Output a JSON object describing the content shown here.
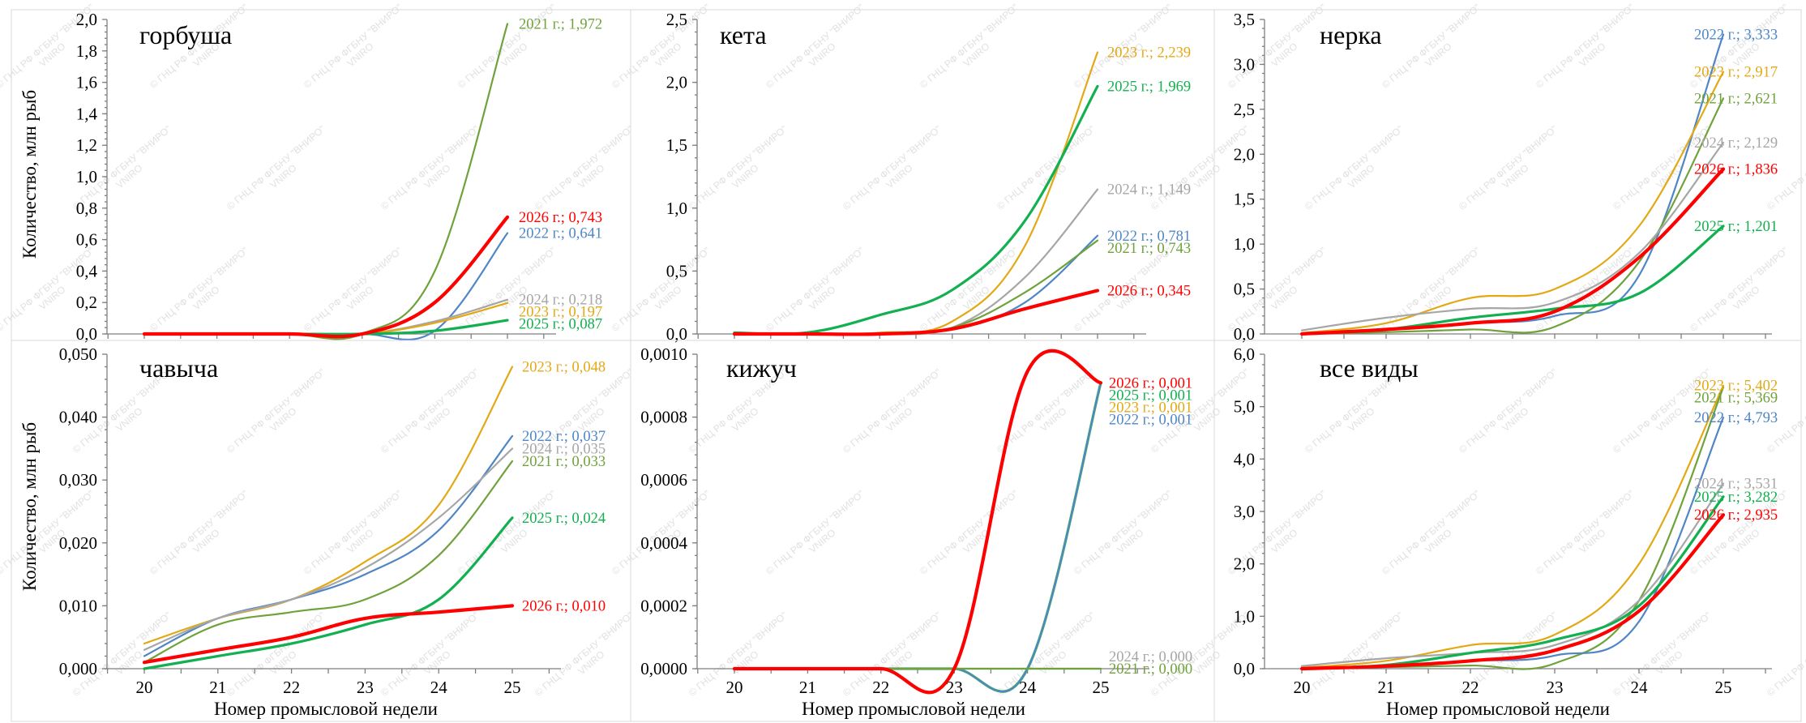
{
  "figure": {
    "x_axis_title": "Номер промысловой недели",
    "y_axis_title": "Количество, млн рыб",
    "watermark": [
      "© ГНЦ РФ ФГБНУ \"ВНИРО\"",
      "VNIRO"
    ]
  },
  "series_colors": {
    "2021": "#70a23c",
    "2022": "#4f86c6",
    "2023": "#e3a915",
    "2024": "#a6a6a6",
    "2025": "#12b050",
    "2026": "#ff0000"
  },
  "chart_data": [
    {
      "type": "line",
      "title": "горбуша",
      "x": [
        20,
        21,
        22,
        23,
        24,
        25
      ],
      "ylim": [
        0,
        2.0
      ],
      "y_ticks": [
        "0,0",
        "0,2",
        "0,4",
        "0,6",
        "0,8",
        "1,0",
        "1,2",
        "1,4",
        "1,6",
        "1,8",
        "2,0"
      ],
      "x_ticks": [],
      "series": [
        {
          "name": "2021 г.",
          "values": [
            0,
            0,
            0,
            0,
            0.4,
            1.972
          ],
          "end_label": "2021 г.; 1,972"
        },
        {
          "name": "2026 г.",
          "values": [
            0,
            0,
            0,
            0,
            0.2,
            0.743
          ],
          "end_label": "2026 г.; 0,743"
        },
        {
          "name": "2022 г.",
          "values": [
            0,
            0,
            0,
            0,
            0.02,
            0.641
          ],
          "end_label": "2022 г.; 0,641"
        },
        {
          "name": "2024 г.",
          "values": [
            0,
            0,
            0,
            0,
            0.08,
            0.218
          ],
          "end_label": "2024 г.; 0,218"
        },
        {
          "name": "2023 г.",
          "values": [
            0,
            0,
            0,
            0,
            0.07,
            0.197
          ],
          "end_label": "2023 г.; 0,197"
        },
        {
          "name": "2025 г.",
          "values": [
            0,
            0,
            0,
            0,
            0.02,
            0.087
          ],
          "end_label": "2025 г.; 0,087"
        }
      ]
    },
    {
      "type": "line",
      "title": "кета",
      "x": [
        20,
        21,
        22,
        23,
        24,
        25
      ],
      "ylim": [
        0,
        2.5
      ],
      "y_ticks": [
        "0,0",
        "0,5",
        "1,0",
        "1,5",
        "2,0",
        "2,5"
      ],
      "x_ticks": [],
      "series": [
        {
          "name": "2023 г.",
          "values": [
            0.0,
            0.0,
            0.01,
            0.1,
            0.7,
            2.239
          ],
          "end_label": "2023 г.; 2,239"
        },
        {
          "name": "2025 г.",
          "values": [
            0.01,
            0.01,
            0.15,
            0.35,
            0.9,
            1.969
          ],
          "end_label": "2025 г.; 1,969"
        },
        {
          "name": "2024 г.",
          "values": [
            0.0,
            0.0,
            0.0,
            0.05,
            0.45,
            1.149
          ],
          "end_label": "2024 г.; 1,149"
        },
        {
          "name": "2022 г.",
          "values": [
            0.0,
            0.0,
            0.0,
            0.04,
            0.25,
            0.781
          ],
          "end_label": "2022 г.; 0,781"
        },
        {
          "name": "2021 г.",
          "values": [
            0.0,
            0.0,
            0.0,
            0.05,
            0.33,
            0.743
          ],
          "end_label": "2021 г.; 0,743"
        },
        {
          "name": "2026 г.",
          "values": [
            0.0,
            0.0,
            0.0,
            0.04,
            0.2,
            0.345
          ],
          "end_label": "2026 г.; 0,345"
        }
      ]
    },
    {
      "type": "line",
      "title": "нерка",
      "x": [
        20,
        21,
        22,
        23,
        24,
        25
      ],
      "ylim": [
        0,
        3.5
      ],
      "y_ticks": [
        "0,0",
        "0,5",
        "1,0",
        "1,5",
        "2,0",
        "2,5",
        "3,0",
        "3,5"
      ],
      "x_ticks": [],
      "series": [
        {
          "name": "2022 г.",
          "values": [
            0.0,
            0.05,
            0.12,
            0.2,
            0.65,
            3.333
          ],
          "end_label": "2022 г.; 3,333"
        },
        {
          "name": "2023 г.",
          "values": [
            0.01,
            0.12,
            0.4,
            0.5,
            1.2,
            2.917
          ],
          "end_label": "2023 г.; 2,917"
        },
        {
          "name": "2021 г.",
          "values": [
            0.0,
            0.02,
            0.05,
            0.08,
            0.8,
            2.621
          ],
          "end_label": "2021 г.; 2,621"
        },
        {
          "name": "2024 г.",
          "values": [
            0.04,
            0.18,
            0.28,
            0.35,
            0.9,
            2.129
          ],
          "end_label": "2024 г.; 2,129"
        },
        {
          "name": "2026 г.",
          "values": [
            0.0,
            0.05,
            0.12,
            0.25,
            0.85,
            1.836
          ],
          "end_label": "2026 г.; 1,836"
        },
        {
          "name": "2025 г.",
          "values": [
            0.0,
            0.05,
            0.18,
            0.28,
            0.45,
            1.201
          ],
          "end_label": "2025 г.; 1,201"
        }
      ]
    },
    {
      "type": "line",
      "title": "чавыча",
      "x": [
        20,
        21,
        22,
        23,
        24,
        25
      ],
      "ylim": [
        0,
        0.05
      ],
      "y_ticks": [
        "0,000",
        "0,010",
        "0,020",
        "0,030",
        "0,040",
        "0,050"
      ],
      "x_ticks": [
        "20",
        "21",
        "22",
        "23",
        "24",
        "25"
      ],
      "series": [
        {
          "name": "2023 г.",
          "values": [
            0.004,
            0.008,
            0.011,
            0.017,
            0.026,
            0.048
          ],
          "end_label": "2023 г.; 0,048"
        },
        {
          "name": "2022 г.",
          "values": [
            0.002,
            0.008,
            0.011,
            0.015,
            0.022,
            0.037
          ],
          "end_label": "2022 г.; 0,037"
        },
        {
          "name": "2024 г.",
          "values": [
            0.003,
            0.008,
            0.011,
            0.016,
            0.024,
            0.035
          ],
          "end_label": "2024 г.; 0,035"
        },
        {
          "name": "2021 г.",
          "values": [
            0.001,
            0.007,
            0.009,
            0.011,
            0.018,
            0.033
          ],
          "end_label": "2021 г.; 0,033"
        },
        {
          "name": "2025 г.",
          "values": [
            0.0,
            0.002,
            0.004,
            0.007,
            0.011,
            0.024
          ],
          "end_label": "2025 г.; 0,024"
        },
        {
          "name": "2026 г.",
          "values": [
            0.001,
            0.003,
            0.005,
            0.008,
            0.009,
            0.01
          ],
          "end_label": "2026 г.; 0,010"
        }
      ]
    },
    {
      "type": "line",
      "title": "кижуч",
      "x": [
        20,
        21,
        22,
        23,
        24,
        25
      ],
      "ylim": [
        0,
        0.0011
      ],
      "y_ticks": [
        "0,0000",
        "0,0002",
        "0,0004",
        "0,0006",
        "0,0008",
        "0,0010"
      ],
      "x_ticks": [
        "20",
        "21",
        "22",
        "23",
        "24",
        "25"
      ],
      "series": [
        {
          "name": "2026 г.",
          "values": [
            0,
            0,
            0,
            0,
            0.00104,
            0.001
          ],
          "end_label": "2026 г.; 0,001"
        },
        {
          "name": "2025 г.",
          "values": [
            0,
            0,
            0,
            0,
            0,
            0.001
          ],
          "end_label": "2025 г.; 0,001"
        },
        {
          "name": "2023 г.",
          "values": [
            0,
            0,
            0,
            0,
            0,
            0.001
          ],
          "end_label": "2023 г.; 0,001"
        },
        {
          "name": "2022 г.",
          "values": [
            0,
            0,
            0,
            0,
            0,
            0.001
          ],
          "end_label": "2022 г.; 0,001"
        },
        {
          "name": "2024 г.",
          "values": [
            0,
            0,
            0,
            0,
            0,
            0.0
          ],
          "end_label": "2024 г.; 0,000"
        },
        {
          "name": "2021 г.",
          "values": [
            0,
            0,
            0,
            0,
            0,
            0.0
          ],
          "end_label": "2021 г.; 0,000"
        }
      ]
    },
    {
      "type": "line",
      "title": "все виды",
      "x": [
        20,
        21,
        22,
        23,
        24,
        25
      ],
      "ylim": [
        0,
        6.0
      ],
      "y_ticks": [
        "0,0",
        "1,0",
        "2,0",
        "3,0",
        "4,0",
        "5,0",
        "6,0"
      ],
      "x_ticks": [
        "20",
        "21",
        "22",
        "23",
        "24",
        "25"
      ],
      "series": [
        {
          "name": "2023 г.",
          "values": [
            0.02,
            0.15,
            0.45,
            0.65,
            2.0,
            5.402
          ],
          "end_label": "2023 г.; 5,402"
        },
        {
          "name": "2021 г.",
          "values": [
            0.0,
            0.03,
            0.06,
            0.1,
            1.3,
            5.369
          ],
          "end_label": "2021 г.; 5,369"
        },
        {
          "name": "2022 г.",
          "values": [
            0.0,
            0.06,
            0.15,
            0.25,
            0.9,
            4.793
          ],
          "end_label": "2022 г.; 4,793"
        },
        {
          "name": "2024 г.",
          "values": [
            0.05,
            0.2,
            0.3,
            0.45,
            1.3,
            3.531
          ],
          "end_label": "2024 г.; 3,531"
        },
        {
          "name": "2025 г.",
          "values": [
            0.0,
            0.07,
            0.3,
            0.55,
            1.2,
            3.282
          ],
          "end_label": "2025 г.; 3,282"
        },
        {
          "name": "2026 г.",
          "values": [
            0.0,
            0.05,
            0.15,
            0.35,
            1.1,
            2.935
          ],
          "end_label": "2026 г.; 2,935"
        }
      ]
    }
  ]
}
